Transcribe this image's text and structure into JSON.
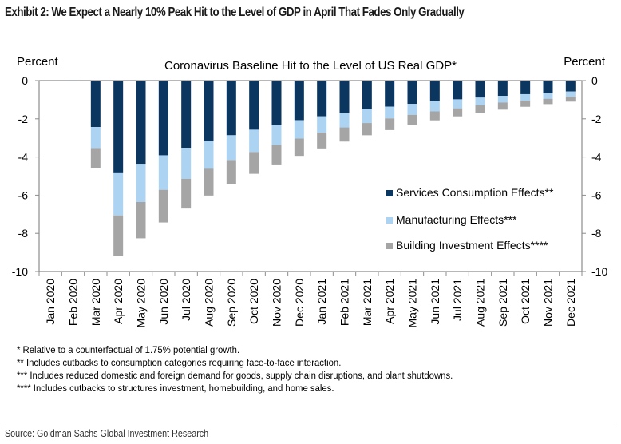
{
  "exhibit_title": "Exhibit 2: We Expect a Nearly 10% Peak Hit to the Level of GDP in April That Fades Only Gradually",
  "chart_data": {
    "type": "bar",
    "stacked": true,
    "title": "Coronavirus Baseline Hit to the Level of US Real GDP*",
    "ylabel_left": "Percent",
    "ylabel_right": "Percent",
    "xlabel": "",
    "ylim": [
      -10,
      0
    ],
    "yticks": [
      0,
      -2,
      -4,
      -6,
      -8,
      -10
    ],
    "grid": false,
    "legend_position": "bottom-right",
    "categories": [
      "Jan 2020",
      "Feb 2020",
      "Mar 2020",
      "Apr 2020",
      "May 2020",
      "Jun 2020",
      "Jul 2020",
      "Aug 2020",
      "Sep 2020",
      "Oct 2020",
      "Nov 2020",
      "Dec 2020",
      "Jan 2021",
      "Feb 2021",
      "Mar 2021",
      "Apr 2021",
      "May 2021",
      "Jun 2021",
      "Jul 2021",
      "Aug 2021",
      "Sep 2021",
      "Oct 2021",
      "Nov 2021",
      "Dec 2021"
    ],
    "series": [
      {
        "name": "Services Consumption Effects**",
        "color": "#0b3660",
        "values": [
          0,
          0,
          -2.43,
          -4.85,
          -4.36,
          -3.91,
          -3.52,
          -3.17,
          -2.86,
          -2.57,
          -2.32,
          -2.07,
          -1.87,
          -1.68,
          -1.51,
          -1.36,
          -1.22,
          -1.09,
          -0.98,
          -0.89,
          -0.8,
          -0.71,
          -0.64,
          -0.57
        ]
      },
      {
        "name": "Manufacturing Effects***",
        "color": "#add3f2",
        "values": [
          0,
          -0.02,
          -1.1,
          -2.21,
          -2.0,
          -1.81,
          -1.62,
          -1.44,
          -1.3,
          -1.17,
          -1.05,
          -0.96,
          -0.85,
          -0.77,
          -0.71,
          -0.62,
          -0.57,
          -0.52,
          -0.47,
          -0.4,
          -0.35,
          -0.34,
          -0.31,
          -0.28
        ]
      },
      {
        "name": "Building Investment Effects****",
        "color": "#a5a5a5",
        "values": [
          0,
          0,
          -1.05,
          -2.12,
          -1.9,
          -1.71,
          -1.56,
          -1.41,
          -1.25,
          -1.14,
          -1.02,
          -0.91,
          -0.83,
          -0.74,
          -0.64,
          -0.61,
          -0.53,
          -0.47,
          -0.42,
          -0.4,
          -0.37,
          -0.32,
          -0.28,
          -0.25
        ]
      }
    ]
  },
  "notes": [
    "* Relative to a counterfactual of 1.75% potential growth.",
    "** Includes cutbacks to consumption categories requiring face-to-face interaction.",
    "*** Includes reduced domestic and foreign demand for goods, supply chain disruptions, and plant shutdowns.",
    "**** Includes cutbacks to structures investment, homebuilding, and home sales."
  ],
  "source": "Source: Goldman Sachs Global Investment Research"
}
